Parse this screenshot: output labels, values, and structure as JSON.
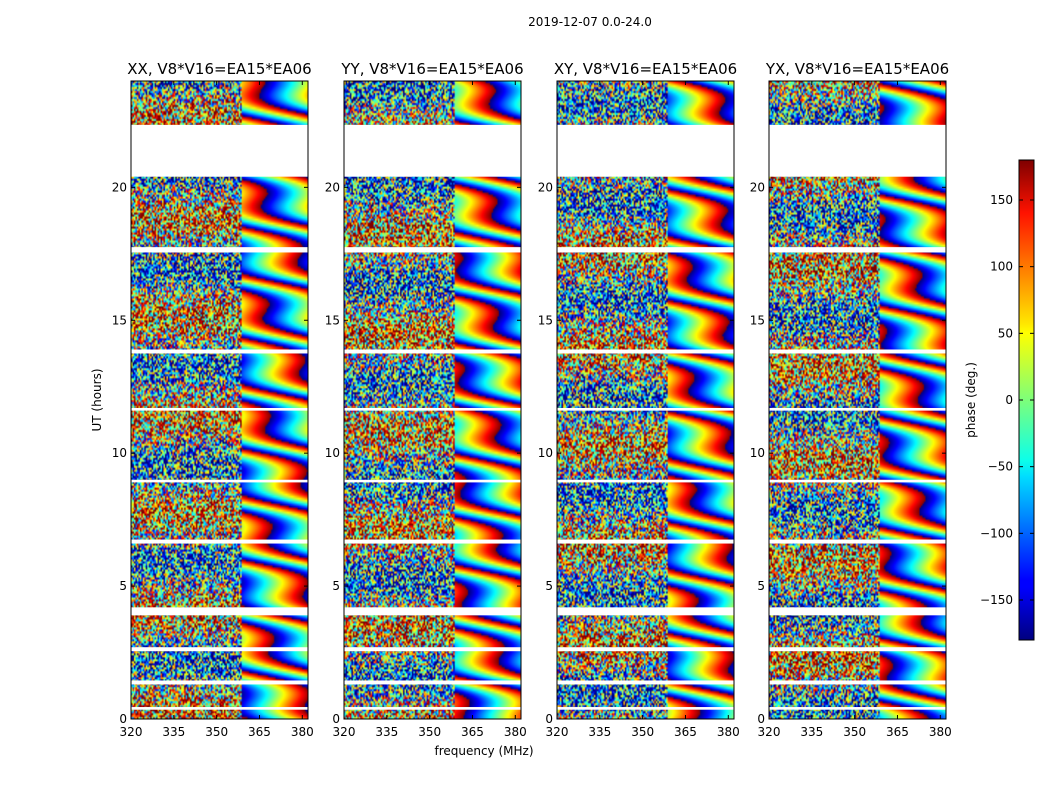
{
  "chart_data": {
    "type": "heatmap",
    "suptitle": "2019-12-07 0.0-24.0",
    "xlabel": "frequency (MHz)",
    "ylabel": "UT (hours)",
    "xlim": [
      320,
      382
    ],
    "ylim": [
      0,
      24
    ],
    "xticks": [
      320,
      335,
      350,
      365,
      380
    ],
    "yticks": [
      0,
      5,
      10,
      15,
      20
    ],
    "panels": [
      {
        "title": "XX, V8*V16=EA15*EA06",
        "pol": "XX"
      },
      {
        "title": "YY, V8*V16=EA15*EA06",
        "pol": "YY"
      },
      {
        "title": "XY, V8*V16=EA15*EA06",
        "pol": "XY"
      },
      {
        "title": "YX, V8*V16=EA15*EA06",
        "pol": "YX"
      }
    ],
    "colorbar": {
      "label": "phase (deg.)",
      "range": [
        -180,
        180
      ],
      "ticks": [
        -150,
        -100,
        -50,
        0,
        50,
        100,
        150
      ],
      "colormap": "jet"
    },
    "flagged_ut_ranges": [
      [
        22.35,
        20.4
      ],
      [
        17.75,
        17.55
      ],
      [
        13.9,
        13.75
      ],
      [
        11.7,
        11.6
      ],
      [
        9.0,
        8.9
      ],
      [
        6.75,
        6.6
      ],
      [
        4.2,
        3.9
      ],
      [
        2.7,
        2.55
      ],
      [
        1.45,
        1.3
      ],
      [
        0.45,
        0.35
      ]
    ],
    "colors": {
      "axes": "#000000",
      "background": "#ffffff",
      "flagged": "#ffffff"
    }
  }
}
